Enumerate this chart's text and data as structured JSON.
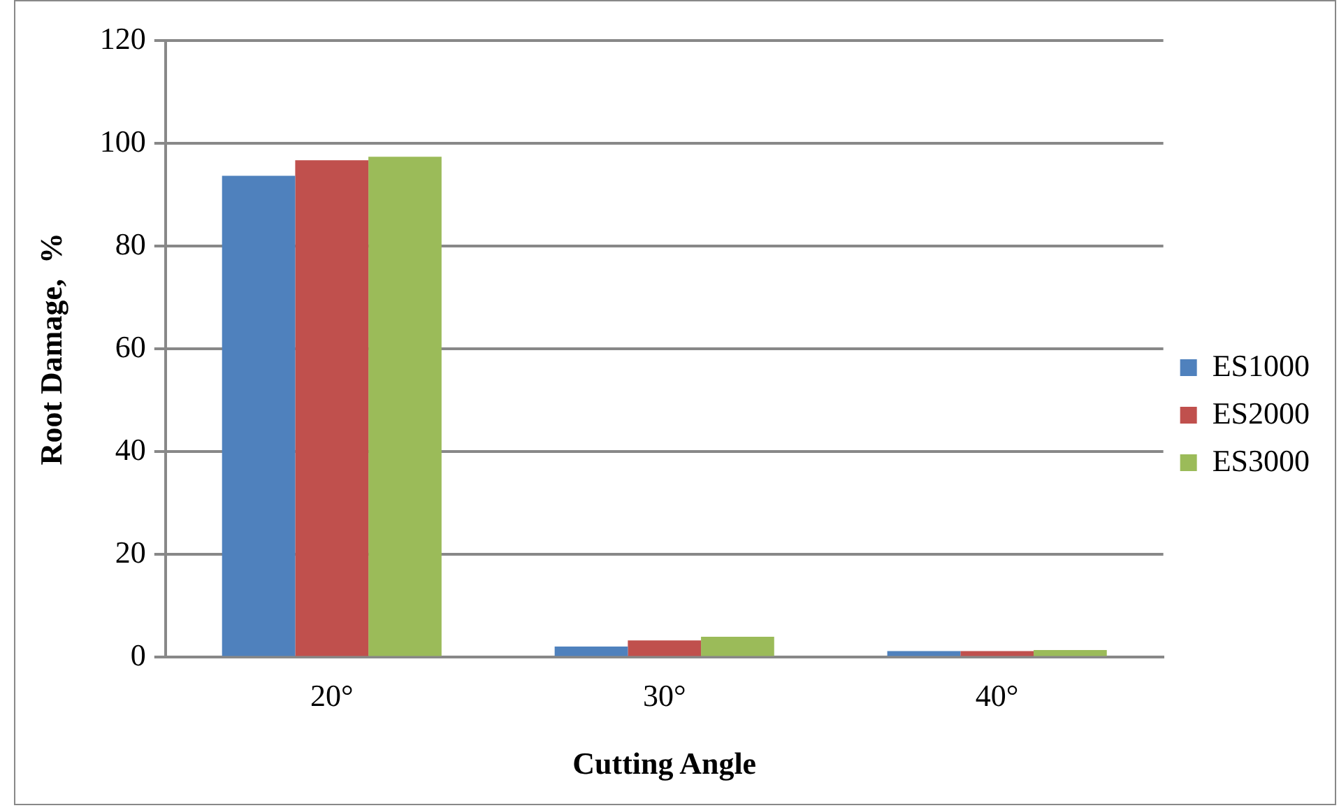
{
  "chart_data": {
    "type": "bar",
    "xlabel": "Cutting Angle",
    "ylabel": "Root Damage,  %",
    "categories": [
      "20°",
      "30°",
      "40°"
    ],
    "series": [
      {
        "name": "ES1000",
        "color": "#4f81bd",
        "values": [
          93.7,
          2.1,
          1.2
        ]
      },
      {
        "name": "ES2000",
        "color": "#c0504d",
        "values": [
          96.7,
          3.3,
          1.2
        ]
      },
      {
        "name": "ES3000",
        "color": "#9bbb59",
        "values": [
          97.4,
          4.0,
          1.4
        ]
      }
    ],
    "ylim": [
      0,
      120
    ],
    "yticks": [
      0,
      20,
      40,
      60,
      80,
      100,
      120
    ],
    "grid": "y",
    "legend": "right"
  }
}
